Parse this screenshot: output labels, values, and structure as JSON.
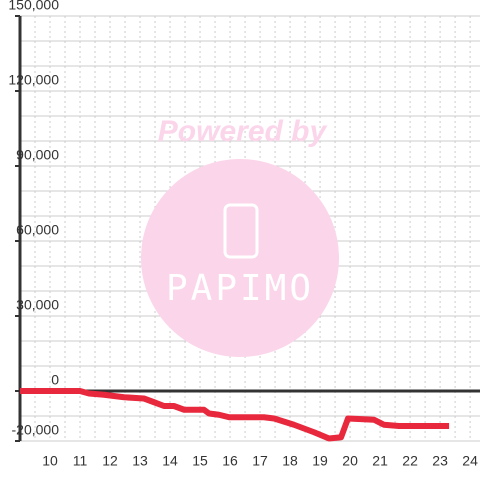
{
  "chart_data": {
    "type": "line",
    "x": [
      9,
      11,
      11.3,
      11.8,
      12.13,
      12.47,
      13.13,
      13.47,
      13.8,
      14.13,
      14.47,
      15.13,
      15.3,
      15.63,
      15.97,
      17.13,
      17.47,
      18.13,
      18.8,
      19.3,
      19.7,
      19.93,
      20.8,
      21.13,
      21.63,
      23.3
    ],
    "series": [
      {
        "color": "#e8283c",
        "values": [
          0,
          0,
          -1000,
          -1500,
          -2000,
          -2500,
          -3000,
          -4500,
          -6000,
          -6000,
          -7500,
          -7500,
          -9000,
          -9500,
          -10500,
          -10500,
          -11000,
          -13500,
          -16500,
          -19000,
          -18500,
          -11000,
          -11500,
          -13500,
          -14000,
          -14000
        ]
      }
    ],
    "xlim": [
      9,
      24.33
    ],
    "xticks": [
      10,
      11,
      12,
      13,
      14,
      15,
      16,
      17,
      18,
      19,
      20,
      21,
      22,
      23,
      24
    ],
    "x_minor_ticks": [
      9.5,
      10.5,
      11.5,
      12.5,
      13.5,
      14.5,
      15.5,
      16.5,
      17.5,
      18.5,
      19.5,
      20.5,
      21.5,
      22.5,
      23.5
    ],
    "ylim": [
      -20000,
      150000
    ],
    "yticks": [
      {
        "value": -20000,
        "label": "-20,000"
      },
      0,
      {
        "value": 30000,
        "label": "30,000"
      },
      {
        "value": 60000,
        "label": "60,000"
      },
      {
        "value": 90000,
        "label": "90,000"
      },
      {
        "value": 120000,
        "label": "120,000"
      },
      {
        "value": 150000,
        "label": "150,000"
      }
    ],
    "y_minor_ticks": [
      -10000,
      10000,
      20000,
      40000,
      50000,
      70000,
      80000,
      100000,
      110000,
      130000,
      140000
    ],
    "grid": true,
    "watermark": {
      "text": "Powered by",
      "logo": "PAPIMO"
    }
  }
}
